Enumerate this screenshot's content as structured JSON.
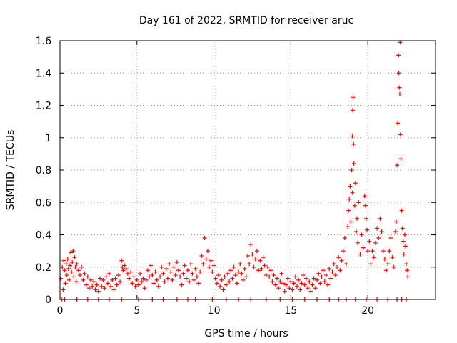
{
  "chart_data": {
    "type": "scatter",
    "title": "Day 161 of 2022, SRMTID for receiver aruc",
    "xlabel": "GPS time / hours",
    "ylabel": "SRMTID / TECUs",
    "xlim": [
      0,
      24.4
    ],
    "ylim": [
      0,
      1.6
    ],
    "x_ticks": [
      0,
      5,
      10,
      15,
      20
    ],
    "x_tick_labels": [
      "0",
      "5",
      "10",
      "15",
      "20"
    ],
    "y_ticks": [
      0,
      0.2,
      0.4,
      0.6,
      0.8,
      1.0,
      1.2,
      1.4,
      1.6
    ],
    "y_tick_labels": [
      "0",
      "0.2",
      "0.4",
      "0.6",
      "0.8",
      "1",
      "1.2",
      "1.4",
      "1.6"
    ],
    "grid": true,
    "marker": "+",
    "color": "#ff0000",
    "series": [
      {
        "name": "SRMTID",
        "points": [
          [
            0.05,
            0.13
          ],
          [
            0.15,
            0.2
          ],
          [
            0.2,
            0.06
          ],
          [
            0.25,
            0.24
          ],
          [
            0.3,
            0.18
          ],
          [
            0.35,
            0.1
          ],
          [
            0.4,
            0.22
          ],
          [
            0.45,
            0.15
          ],
          [
            0.5,
            0.25
          ],
          [
            0.55,
            0.19
          ],
          [
            0.6,
            0.12
          ],
          [
            0.65,
            0.21
          ],
          [
            0.7,
            0.29
          ],
          [
            0.75,
            0.17
          ],
          [
            0.8,
            0.23
          ],
          [
            0.85,
            0.3
          ],
          [
            0.9,
            0.14
          ],
          [
            0.95,
            0.26
          ],
          [
            1.0,
            0.2
          ],
          [
            1.05,
            0.11
          ],
          [
            1.1,
            0.22
          ],
          [
            1.2,
            0.18
          ],
          [
            1.3,
            0.15
          ],
          [
            1.4,
            0.2
          ],
          [
            1.5,
            0.12
          ],
          [
            1.6,
            0.16
          ],
          [
            1.7,
            0.09
          ],
          [
            1.8,
            0.14
          ],
          [
            1.9,
            0.07
          ],
          [
            2.0,
            0.12
          ],
          [
            2.1,
            0.08
          ],
          [
            2.2,
            0.11
          ],
          [
            2.3,
            0.06
          ],
          [
            2.4,
            0.09
          ],
          [
            2.5,
            0.05
          ],
          [
            2.6,
            0.13
          ],
          [
            2.7,
            0.08
          ],
          [
            2.8,
            0.12
          ],
          [
            2.9,
            0.07
          ],
          [
            3.0,
            0.14
          ],
          [
            3.1,
            0.1
          ],
          [
            3.2,
            0.16
          ],
          [
            3.3,
            0.08
          ],
          [
            3.4,
            0.12
          ],
          [
            3.5,
            0.06
          ],
          [
            3.6,
            0.13
          ],
          [
            3.7,
            0.09
          ],
          [
            3.8,
            0.15
          ],
          [
            3.9,
            0.11
          ],
          [
            4.0,
            0.24
          ],
          [
            4.05,
            0.2
          ],
          [
            4.1,
            0.18
          ],
          [
            4.2,
            0.21
          ],
          [
            4.3,
            0.19
          ],
          [
            4.4,
            0.16
          ],
          [
            4.5,
            0.13
          ],
          [
            4.6,
            0.17
          ],
          [
            4.7,
            0.1
          ],
          [
            4.8,
            0.14
          ],
          [
            4.9,
            0.08
          ],
          [
            5.0,
            0.12
          ],
          [
            5.1,
            0.09
          ],
          [
            5.2,
            0.16
          ],
          [
            5.3,
            0.11
          ],
          [
            5.4,
            0.13
          ],
          [
            5.5,
            0.07
          ],
          [
            5.6,
            0.12
          ],
          [
            5.7,
            0.18
          ],
          [
            5.8,
            0.14
          ],
          [
            5.9,
            0.21
          ],
          [
            6.0,
            0.15
          ],
          [
            6.1,
            0.1
          ],
          [
            6.2,
            0.17
          ],
          [
            6.3,
            0.12
          ],
          [
            6.4,
            0.08
          ],
          [
            6.5,
            0.14
          ],
          [
            6.6,
            0.2
          ],
          [
            6.7,
            0.16
          ],
          [
            6.8,
            0.11
          ],
          [
            6.9,
            0.19
          ],
          [
            7.0,
            0.13
          ],
          [
            7.1,
            0.22
          ],
          [
            7.2,
            0.17
          ],
          [
            7.3,
            0.12
          ],
          [
            7.4,
            0.2
          ],
          [
            7.5,
            0.15
          ],
          [
            7.6,
            0.23
          ],
          [
            7.7,
            0.18
          ],
          [
            7.8,
            0.14
          ],
          [
            7.9,
            0.09
          ],
          [
            8.0,
            0.16
          ],
          [
            8.1,
            0.21
          ],
          [
            8.2,
            0.13
          ],
          [
            8.3,
            0.18
          ],
          [
            8.4,
            0.11
          ],
          [
            8.5,
            0.22
          ],
          [
            8.6,
            0.16
          ],
          [
            8.7,
            0.12
          ],
          [
            8.8,
            0.19
          ],
          [
            8.9,
            0.14
          ],
          [
            9.0,
            0.1
          ],
          [
            9.1,
            0.17
          ],
          [
            9.2,
            0.27
          ],
          [
            9.3,
            0.22
          ],
          [
            9.4,
            0.38
          ],
          [
            9.5,
            0.25
          ],
          [
            9.6,
            0.3
          ],
          [
            9.7,
            0.2
          ],
          [
            9.8,
            0.24
          ],
          [
            9.9,
            0.17
          ],
          [
            10.0,
            0.21
          ],
          [
            10.1,
            0.13
          ],
          [
            10.2,
            0.1
          ],
          [
            10.3,
            0.15
          ],
          [
            10.4,
            0.08
          ],
          [
            10.5,
            0.12
          ],
          [
            10.6,
            0.06
          ],
          [
            10.7,
            0.14
          ],
          [
            10.8,
            0.09
          ],
          [
            10.9,
            0.16
          ],
          [
            11.0,
            0.11
          ],
          [
            11.1,
            0.18
          ],
          [
            11.2,
            0.13
          ],
          [
            11.3,
            0.2
          ],
          [
            11.4,
            0.15
          ],
          [
            11.5,
            0.1
          ],
          [
            11.6,
            0.17
          ],
          [
            11.7,
            0.22
          ],
          [
            11.8,
            0.16
          ],
          [
            11.9,
            0.12
          ],
          [
            12.0,
            0.19
          ],
          [
            12.1,
            0.14
          ],
          [
            12.2,
            0.27
          ],
          [
            12.3,
            0.22
          ],
          [
            12.4,
            0.34
          ],
          [
            12.5,
            0.28
          ],
          [
            12.6,
            0.2
          ],
          [
            12.7,
            0.25
          ],
          [
            12.8,
            0.3
          ],
          [
            12.9,
            0.18
          ],
          [
            13.0,
            0.24
          ],
          [
            13.1,
            0.19
          ],
          [
            13.2,
            0.26
          ],
          [
            13.3,
            0.21
          ],
          [
            13.4,
            0.15
          ],
          [
            13.5,
            0.2
          ],
          [
            13.6,
            0.14
          ],
          [
            13.7,
            0.18
          ],
          [
            13.8,
            0.11
          ],
          [
            13.9,
            0.15
          ],
          [
            14.0,
            0.09
          ],
          [
            14.1,
            0.13
          ],
          [
            14.2,
            0.07
          ],
          [
            14.3,
            0.11
          ],
          [
            14.4,
            0.16
          ],
          [
            14.5,
            0.1
          ],
          [
            14.6,
            0.05
          ],
          [
            14.7,
            0.09
          ],
          [
            14.8,
            0.13
          ],
          [
            14.9,
            0.07
          ],
          [
            15.0,
            0.11
          ],
          [
            15.1,
            0.06
          ],
          [
            15.2,
            0.1
          ],
          [
            15.3,
            0.14
          ],
          [
            15.4,
            0.08
          ],
          [
            15.5,
            0.12
          ],
          [
            15.6,
            0.06
          ],
          [
            15.7,
            0.1
          ],
          [
            15.8,
            0.15
          ],
          [
            15.9,
            0.09
          ],
          [
            16.0,
            0.13
          ],
          [
            16.1,
            0.07
          ],
          [
            16.2,
            0.11
          ],
          [
            16.3,
            0.05
          ],
          [
            16.4,
            0.09
          ],
          [
            16.5,
            0.13
          ],
          [
            16.6,
            0.07
          ],
          [
            16.7,
            0.12
          ],
          [
            16.8,
            0.16
          ],
          [
            16.9,
            0.1
          ],
          [
            17.0,
            0.14
          ],
          [
            17.1,
            0.18
          ],
          [
            17.2,
            0.11
          ],
          [
            17.3,
            0.15
          ],
          [
            17.4,
            0.09
          ],
          [
            17.5,
            0.19
          ],
          [
            17.6,
            0.13
          ],
          [
            17.7,
            0.17
          ],
          [
            17.8,
            0.22
          ],
          [
            17.9,
            0.15
          ],
          [
            18.0,
            0.2
          ],
          [
            18.1,
            0.26
          ],
          [
            18.2,
            0.18
          ],
          [
            18.3,
            0.24
          ],
          [
            18.4,
            0.3
          ],
          [
            18.5,
            0.38
          ],
          [
            18.6,
            0.22
          ],
          [
            18.7,
            0.45
          ],
          [
            18.75,
            0.55
          ],
          [
            18.8,
            0.62
          ],
          [
            18.85,
            0.7
          ],
          [
            18.9,
            0.48
          ],
          [
            18.95,
            0.8
          ],
          [
            19.0,
            0.66
          ],
          [
            19.0,
            1.01
          ],
          [
            19.02,
            1.17
          ],
          [
            19.05,
            1.25
          ],
          [
            19.08,
            0.96
          ],
          [
            19.1,
            0.84
          ],
          [
            19.15,
            0.58
          ],
          [
            19.2,
            0.72
          ],
          [
            19.25,
            0.42
          ],
          [
            19.3,
            0.5
          ],
          [
            19.35,
            0.35
          ],
          [
            19.4,
            0.6
          ],
          [
            19.5,
            0.28
          ],
          [
            19.6,
            0.4
          ],
          [
            19.7,
            0.32
          ],
          [
            19.8,
            0.64
          ],
          [
            19.85,
            0.58
          ],
          [
            19.9,
            0.5
          ],
          [
            19.95,
            0.43
          ],
          [
            20.0,
            0.3
          ],
          [
            20.1,
            0.36
          ],
          [
            20.2,
            0.22
          ],
          [
            20.3,
            0.3
          ],
          [
            20.4,
            0.26
          ],
          [
            20.5,
            0.35
          ],
          [
            20.6,
            0.44
          ],
          [
            20.7,
            0.38
          ],
          [
            20.8,
            0.5
          ],
          [
            20.9,
            0.42
          ],
          [
            21.0,
            0.3
          ],
          [
            21.1,
            0.25
          ],
          [
            21.2,
            0.18
          ],
          [
            21.3,
            0.22
          ],
          [
            21.4,
            0.3
          ],
          [
            21.5,
            0.38
          ],
          [
            21.6,
            0.26
          ],
          [
            21.7,
            0.2
          ],
          [
            21.8,
            0.42
          ],
          [
            21.85,
            0.48
          ],
          [
            21.9,
            0.83
          ],
          [
            21.95,
            1.09
          ],
          [
            22.0,
            1.51
          ],
          [
            22.02,
            1.4
          ],
          [
            22.05,
            1.31
          ],
          [
            22.08,
            1.27
          ],
          [
            22.1,
            1.59
          ],
          [
            22.12,
            1.02
          ],
          [
            22.15,
            0.87
          ],
          [
            22.2,
            0.55
          ],
          [
            22.25,
            0.44
          ],
          [
            22.3,
            0.36
          ],
          [
            22.35,
            0.28
          ],
          [
            22.4,
            0.4
          ],
          [
            22.45,
            0.33
          ],
          [
            22.5,
            0.22
          ],
          [
            22.55,
            0.18
          ],
          [
            22.6,
            0.14
          ]
        ]
      }
    ],
    "baseline_markers_x": [
      0.1,
      0.3,
      1.1,
      1.8,
      2.5,
      3.2,
      4.0,
      5.1,
      6.0,
      6.7,
      7.6,
      8.3,
      8.8,
      9.9,
      10.8,
      11.6,
      12.4,
      13.4,
      14.3,
      15.1,
      15.9,
      16.7,
      17.5,
      18.1,
      18.6,
      19.2,
      19.9,
      20.6,
      21.3,
      21.9,
      22.2,
      22.5
    ]
  }
}
